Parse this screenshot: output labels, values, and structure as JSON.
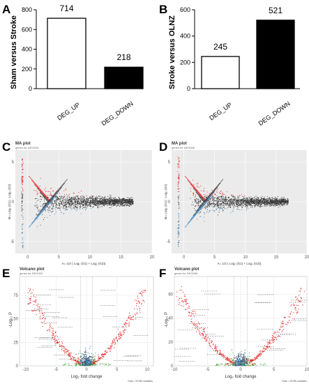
{
  "panel_labels": [
    "A",
    "B",
    "C",
    "D",
    "E",
    "F"
  ],
  "chart_data": [
    {
      "type": "bar",
      "panel": "A",
      "ylabel": "Sham versus Stroke",
      "categories": [
        "DEG_UP",
        "DEG_DOWN"
      ],
      "values": [
        714,
        218
      ],
      "data_labels": [
        "714",
        "218"
      ],
      "colors": [
        "#ffffff",
        "#000000"
      ],
      "ylim": [
        0,
        800
      ],
      "yticks": [
        0,
        200,
        400,
        600,
        800
      ]
    },
    {
      "type": "bar",
      "panel": "B",
      "ylabel": "Stroke versus OLNZ",
      "categories": [
        "DEG_UP",
        "DEG_DOWN"
      ],
      "values": [
        245,
        521
      ],
      "data_labels": [
        "245",
        "521"
      ],
      "colors": [
        "#ffffff",
        "#000000"
      ],
      "ylim": [
        0,
        600
      ],
      "yticks": [
        0,
        200,
        400,
        600
      ]
    },
    {
      "type": "scatter",
      "panel": "C",
      "title": "MA plot",
      "subtitle": "genes for DEG003",
      "xlabel": "A= 1/2 ( Log₂ (G1) + Log₂ (G2))",
      "ylabel": "M= Log₂ (G1) - Log₂ (G2)",
      "xlim": [
        -2,
        20
      ],
      "ylim": [
        -6.5,
        6.5
      ],
      "xticks": [
        0,
        5,
        10,
        15,
        20
      ],
      "yticks": [
        -5,
        0,
        5
      ],
      "series_colors": {
        "up": "#e41a1c",
        "down": "#377eb8",
        "ns": "#333333"
      }
    },
    {
      "type": "scatter",
      "panel": "D",
      "title": "MA plot",
      "subtitle": "genes for DEG006",
      "xlabel": "A= 1/2 ( Log₂ (G1) + Log₂ (G2))",
      "ylabel": "M= Log₂ (G1) - Log₂ (G2)",
      "xlim": [
        -2,
        20
      ],
      "ylim": [
        -6.5,
        6.5
      ],
      "xticks": [
        0,
        5,
        10,
        15,
        20
      ],
      "yticks": [
        -5,
        0,
        5
      ],
      "series_colors": {
        "up": "#e41a1c",
        "down": "#377eb8",
        "ns": "#333333"
      }
    },
    {
      "type": "scatter",
      "panel": "E",
      "title": "Volcano plot",
      "subtitle": "genes for DEG003",
      "xlabel": "Log₂ fold change",
      "ylabel": "-Log₁₀ P",
      "xlim": [
        -11,
        11
      ],
      "ylim": [
        0,
        95
      ],
      "xticks": [
        -10,
        -5,
        0,
        5,
        10
      ],
      "yticks": [
        0,
        25,
        50,
        75
      ],
      "caption": "Total = 20785 variables",
      "series_colors": {
        "sig": "#e41a1c",
        "fc": "#4daf4a",
        "p": "#377eb8",
        "ns": "#444444"
      }
    },
    {
      "type": "scatter",
      "panel": "F",
      "title": "Volcano plot",
      "subtitle": "genes for DEG006",
      "xlabel": "Log₂ fold change",
      "ylabel": "-Log₁₀ P",
      "xlim": [
        -10,
        10
      ],
      "ylim": [
        0,
        75
      ],
      "xticks": [
        -10,
        -5,
        0,
        5,
        10
      ],
      "yticks": [
        0,
        20,
        40,
        60
      ],
      "caption": "Total = 20785 variables",
      "series_colors": {
        "sig": "#e41a1c",
        "fc": "#4daf4a",
        "p": "#377eb8",
        "ns": "#444444"
      }
    }
  ]
}
